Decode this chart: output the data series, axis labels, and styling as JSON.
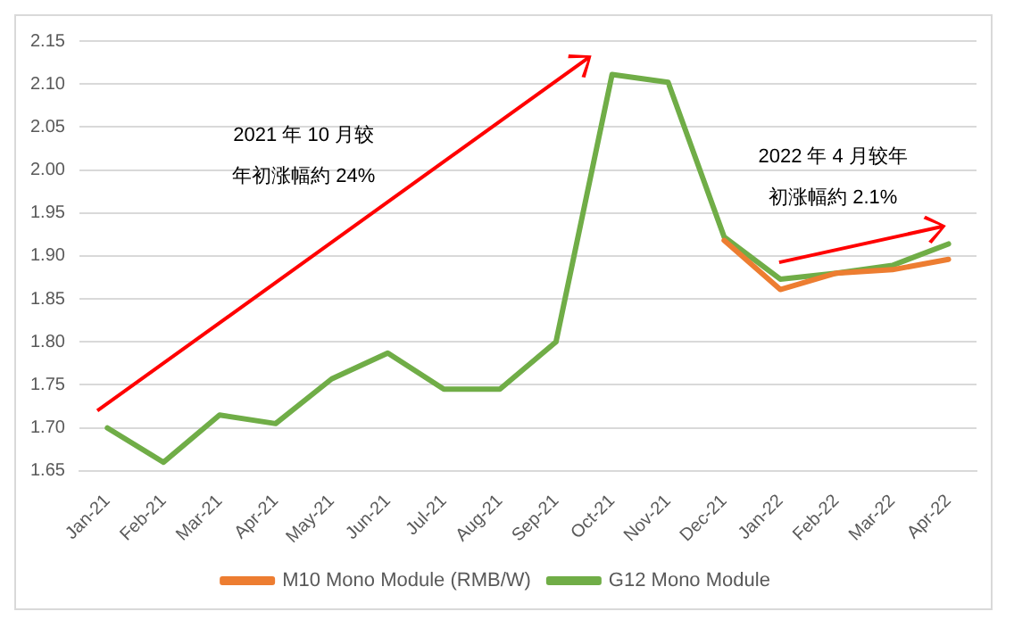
{
  "chart_data": {
    "type": "line",
    "categories": [
      "Jan-21",
      "Feb-21",
      "Mar-21",
      "Apr-21",
      "May-21",
      "Jun-21",
      "Jul-21",
      "Aug-21",
      "Sep-21",
      "Oct-21",
      "Nov-21",
      "Dec-21",
      "Jan-22",
      "Feb-22",
      "Mar-22",
      "Apr-22"
    ],
    "series": [
      {
        "name": "M10 Mono Module (RMB/W)",
        "color": "#ed7d31",
        "values": [
          null,
          null,
          null,
          null,
          null,
          null,
          null,
          null,
          null,
          null,
          null,
          1.918,
          1.861,
          1.88,
          1.884,
          1.896
        ]
      },
      {
        "name": "G12 Mono Module",
        "color": "#70ad47",
        "values": [
          1.7,
          1.66,
          1.715,
          1.705,
          1.757,
          1.787,
          1.745,
          1.745,
          1.8,
          2.111,
          2.102,
          1.922,
          1.873,
          1.88,
          1.889,
          1.914
        ]
      }
    ],
    "ylim": [
      1.65,
      2.15
    ],
    "yticks": [
      1.65,
      {
        "value": 1.7,
        "label": "1.70"
      },
      1.75,
      {
        "value": 1.8,
        "label": "1.80"
      },
      1.85,
      {
        "value": 1.9,
        "label": "1.90"
      },
      1.95,
      {
        "value": 2,
        "label": "2.00"
      },
      2.05,
      {
        "value": 2.1,
        "label": "2.10"
      },
      2.15
    ],
    "grid": "y",
    "legend": "bottom",
    "marker": "none",
    "line_style": "solid",
    "annotations": [
      "2021 年 10 月较年初涨幅約 24%",
      "2022 年 4 月较年初涨幅約 2.1%"
    ]
  }
}
